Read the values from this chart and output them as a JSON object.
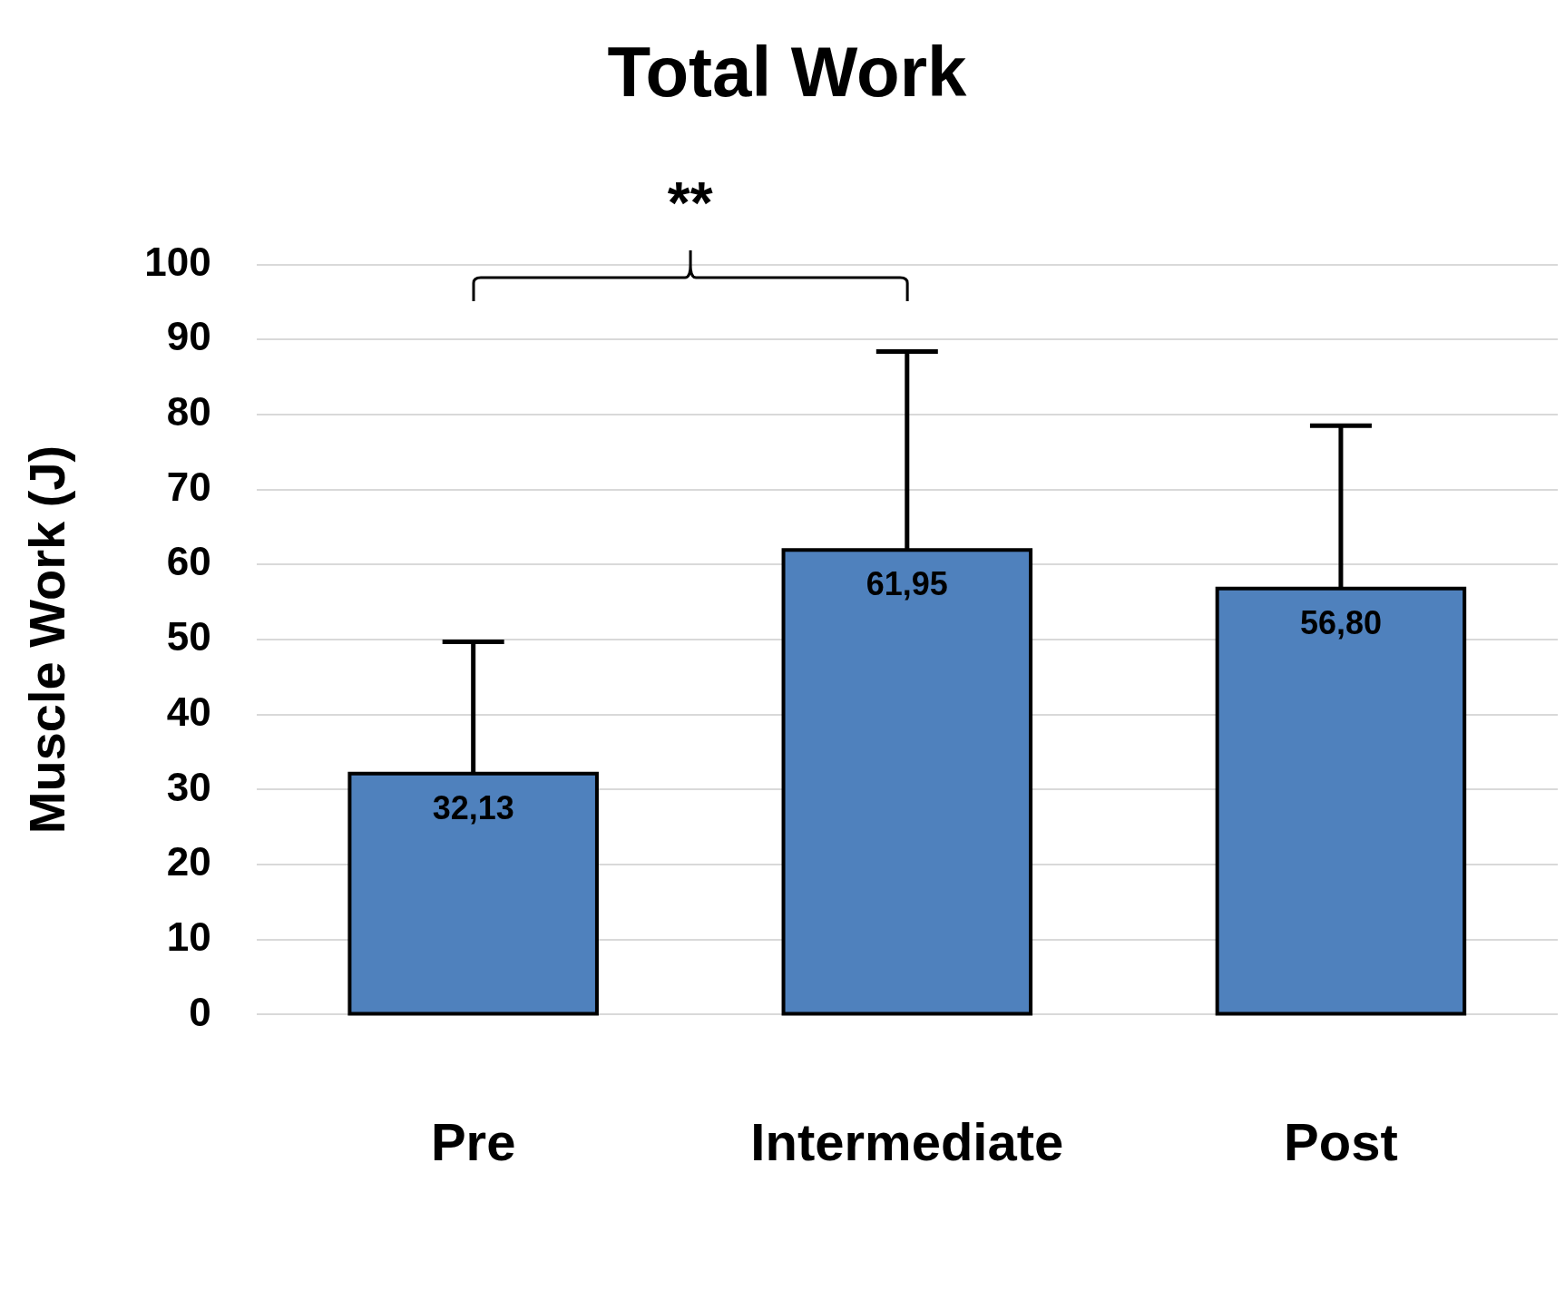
{
  "chart_data": {
    "type": "bar",
    "title": "Total Work",
    "ylabel": "Muscle Work (J)",
    "categories": [
      "Pre",
      "Intermediate",
      "Post"
    ],
    "values": [
      32.13,
      61.95,
      56.8
    ],
    "value_labels": [
      "32,13",
      "61,95",
      "56,80"
    ],
    "errors": [
      [
        32.13,
        49.7
      ],
      [
        61.95,
        88.4
      ],
      [
        56.8,
        78.5
      ]
    ],
    "color": "#4f81bd",
    "ylim": [
      0,
      100
    ],
    "yticks": [
      0,
      10,
      20,
      30,
      40,
      50,
      60,
      70,
      80,
      90,
      100
    ],
    "grid": "y",
    "legend": false,
    "annotations": [
      "**"
    ]
  }
}
